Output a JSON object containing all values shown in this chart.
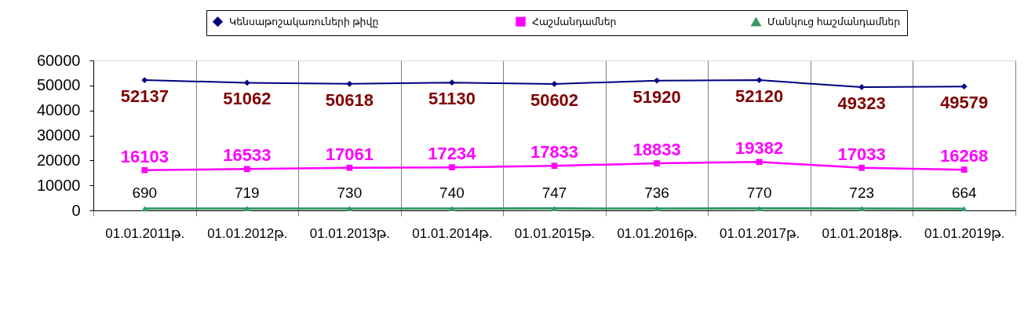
{
  "chart_data": {
    "type": "line",
    "categories": [
      "01.01.2011թ.",
      "01.01.2012թ.",
      "01.01.2013թ.",
      "01.01.2014թ.",
      "01.01.2015թ.",
      "01.01.2016թ.",
      "01.01.2017թ.",
      "01.01.2018թ.",
      "01.01.2019թ."
    ],
    "series": [
      {
        "name": "Կենսաթոշակառուների  թիվը",
        "color": "#000080",
        "marker": "diamond",
        "values": [
          52137,
          51062,
          50618,
          51130,
          50602,
          51920,
          52120,
          49323,
          49579
        ]
      },
      {
        "name": "Հաշմանդամներ",
        "color": "#ff00ff",
        "marker": "square",
        "values": [
          16103,
          16533,
          17061,
          17234,
          17833,
          18833,
          19382,
          17033,
          16268
        ]
      },
      {
        "name": "Մանկուց հաշմանդամներ",
        "color": "#339966",
        "marker": "triangle",
        "values": [
          690,
          719,
          730,
          740,
          747,
          736,
          770,
          723,
          664
        ]
      }
    ],
    "ylim": [
      0,
      60000
    ],
    "yticks": [
      0,
      10000,
      20000,
      30000,
      40000,
      50000,
      60000
    ],
    "grid": "x",
    "legend": "top",
    "data_labels": true,
    "line_style": "solid"
  }
}
